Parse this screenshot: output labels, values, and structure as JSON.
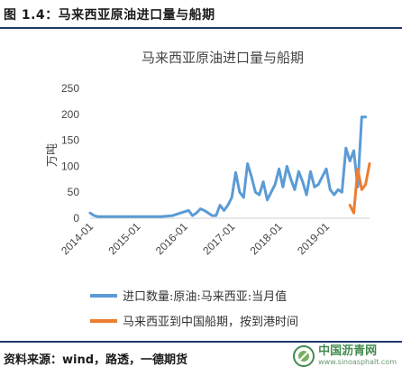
{
  "figure_title": "图 1.4：马来西亚原油进口量与船期",
  "source_note": "资料来源：wind，路透，一德期货",
  "watermark": {
    "icon": "sinoasphalt-logo-icon",
    "name_cn": "中国沥青网",
    "url": "www.sinoasphalt.com"
  },
  "colors": {
    "series_import": "#5b9bd5",
    "series_shipping": "#ed7d31",
    "rule": "#1f3a68"
  },
  "chart_data": {
    "type": "line",
    "title": "马来西亚原油进口量与船期",
    "ylabel": "万吨",
    "xlabel": "",
    "ylim": [
      0,
      250
    ],
    "yticks": [
      0,
      50,
      100,
      150,
      200,
      250
    ],
    "xlim": [
      "2014-01",
      "2019-12"
    ],
    "xticks": [
      "2014-01",
      "2015-01",
      "2016-01",
      "2017-01",
      "2018-01",
      "2019-01"
    ],
    "grid": false,
    "legend_position": "bottom",
    "series": [
      {
        "name": "进口数量:原油:马来西亚:当月值",
        "color": "#5b9bd5",
        "points": [
          [
            "2014-01",
            10
          ],
          [
            "2014-02",
            5
          ],
          [
            "2014-03",
            3
          ],
          [
            "2014-04",
            3
          ],
          [
            "2014-05",
            3
          ],
          [
            "2014-07",
            3
          ],
          [
            "2014-10",
            3
          ],
          [
            "2015-01",
            3
          ],
          [
            "2015-04",
            3
          ],
          [
            "2015-07",
            3
          ],
          [
            "2015-10",
            5
          ],
          [
            "2015-12",
            10
          ],
          [
            "2016-02",
            15
          ],
          [
            "2016-03",
            5
          ],
          [
            "2016-04",
            10
          ],
          [
            "2016-05",
            18
          ],
          [
            "2016-06",
            15
          ],
          [
            "2016-07",
            10
          ],
          [
            "2016-08",
            5
          ],
          [
            "2016-09",
            5
          ],
          [
            "2016-10",
            25
          ],
          [
            "2016-11",
            15
          ],
          [
            "2016-12",
            25
          ],
          [
            "2017-01",
            40
          ],
          [
            "2017-02",
            88
          ],
          [
            "2017-03",
            50
          ],
          [
            "2017-04",
            40
          ],
          [
            "2017-05",
            105
          ],
          [
            "2017-06",
            80
          ],
          [
            "2017-07",
            50
          ],
          [
            "2017-08",
            45
          ],
          [
            "2017-09",
            70
          ],
          [
            "2017-10",
            35
          ],
          [
            "2017-11",
            50
          ],
          [
            "2017-12",
            65
          ],
          [
            "2018-01",
            95
          ],
          [
            "2018-02",
            60
          ],
          [
            "2018-03",
            100
          ],
          [
            "2018-04",
            75
          ],
          [
            "2018-05",
            55
          ],
          [
            "2018-06",
            90
          ],
          [
            "2018-07",
            70
          ],
          [
            "2018-08",
            45
          ],
          [
            "2018-09",
            90
          ],
          [
            "2018-10",
            60
          ],
          [
            "2018-11",
            65
          ],
          [
            "2018-12",
            80
          ],
          [
            "2019-01",
            95
          ],
          [
            "2019-02",
            55
          ],
          [
            "2019-03",
            45
          ],
          [
            "2019-04",
            55
          ],
          [
            "2019-05",
            50
          ],
          [
            "2019-06",
            135
          ],
          [
            "2019-07",
            110
          ],
          [
            "2019-08",
            130
          ],
          [
            "2019-09",
            60
          ],
          [
            "2019-10",
            195
          ],
          [
            "2019-11",
            195
          ]
        ]
      },
      {
        "name": "马来西亚到中国船期，按到港时间",
        "color": "#ed7d31",
        "points": [
          [
            "2019-07",
            25
          ],
          [
            "2019-08",
            10
          ],
          [
            "2019-09",
            95
          ],
          [
            "2019-10",
            55
          ],
          [
            "2019-11",
            65
          ],
          [
            "2019-12",
            105
          ]
        ]
      }
    ]
  }
}
